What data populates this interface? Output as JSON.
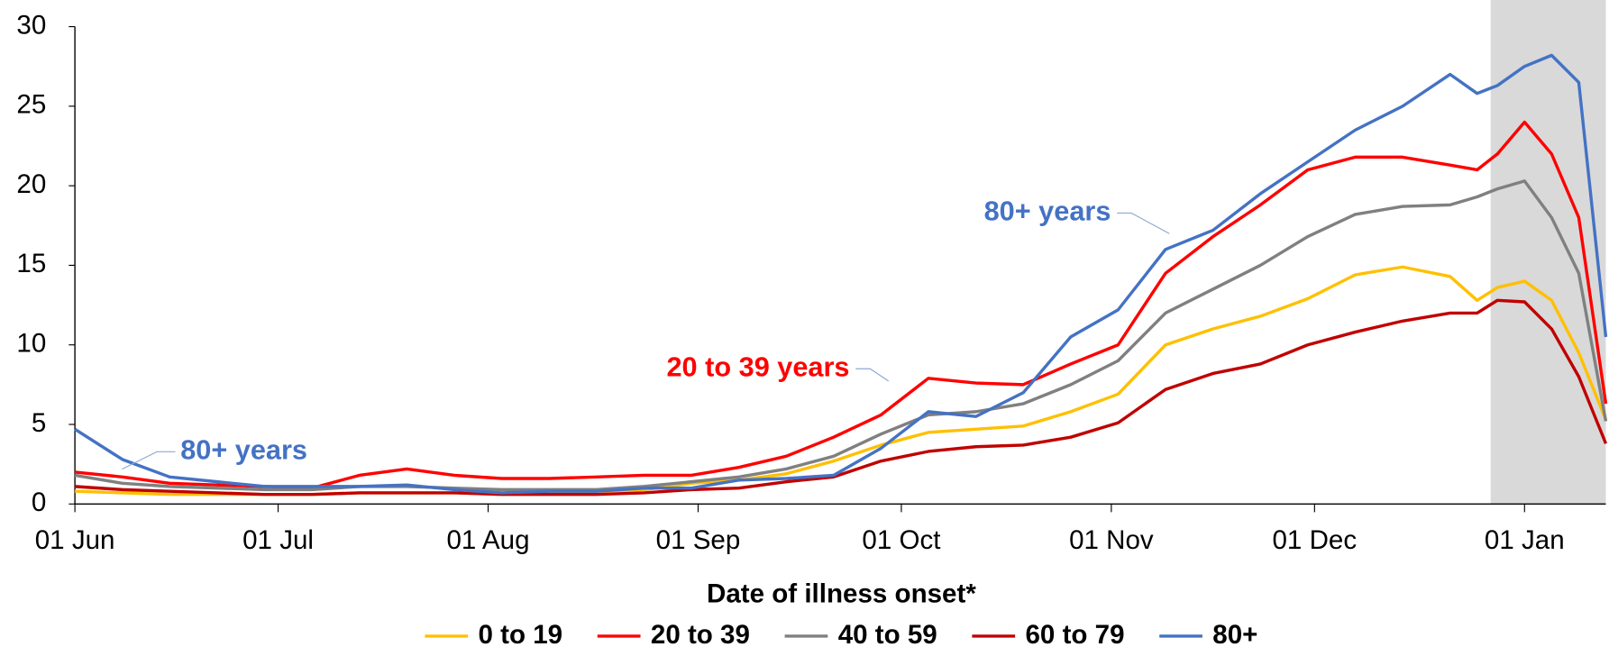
{
  "chart_data": {
    "type": "line",
    "x_label": "Date of illness onset*",
    "x": [
      0,
      7,
      14,
      21,
      28,
      35,
      42,
      49,
      56,
      63,
      70,
      77,
      84,
      91,
      98,
      105,
      112,
      119,
      126,
      133,
      140,
      147,
      154,
      161,
      168,
      175,
      182,
      189,
      196,
      203,
      207,
      210,
      214,
      218,
      222,
      226
    ],
    "xlim": [
      0,
      226
    ],
    "xticks": [
      {
        "value": 0,
        "label": "01 Jun"
      },
      {
        "value": 30,
        "label": "01 Jul"
      },
      {
        "value": 61,
        "label": "01 Aug"
      },
      {
        "value": 92,
        "label": "01 Sep"
      },
      {
        "value": 122,
        "label": "01 Oct"
      },
      {
        "value": 153,
        "label": "01 Nov"
      },
      {
        "value": 183,
        "label": "01 Dec"
      },
      {
        "value": 214,
        "label": "01 Jan"
      }
    ],
    "ylim": [
      0,
      30
    ],
    "yticks": [
      0,
      5,
      10,
      15,
      20,
      25,
      30
    ],
    "shade_xlim": [
      209,
      226
    ],
    "shade_color": "#d9d9d9",
    "legend": "bottom",
    "series": [
      {
        "name": "0 to 19",
        "color": "#ffc000",
        "values": [
          0.8,
          0.7,
          0.6,
          0.6,
          0.6,
          0.6,
          0.7,
          0.7,
          0.7,
          0.6,
          0.7,
          0.8,
          0.9,
          1.3,
          1.5,
          1.9,
          2.7,
          3.7,
          4.5,
          4.7,
          4.9,
          5.8,
          6.9,
          10.0,
          11.0,
          11.8,
          12.9,
          14.4,
          14.9,
          14.3,
          12.8,
          13.6,
          14.0,
          12.8,
          9.5,
          5.3
        ]
      },
      {
        "name": "20 to 39",
        "color": "#ff0000",
        "values": [
          2.0,
          1.7,
          1.3,
          1.2,
          1.1,
          1.0,
          1.8,
          2.2,
          1.8,
          1.6,
          1.6,
          1.7,
          1.8,
          1.8,
          2.3,
          3.0,
          4.2,
          5.6,
          7.9,
          7.6,
          7.5,
          8.8,
          10.0,
          14.5,
          16.8,
          18.8,
          21.0,
          21.8,
          21.8,
          21.3,
          21.0,
          22.0,
          24.0,
          22.0,
          18.0,
          6.3
        ]
      },
      {
        "name": "40 to 59",
        "color": "#808080",
        "values": [
          1.8,
          1.3,
          1.1,
          1.0,
          0.9,
          0.9,
          1.1,
          1.1,
          1.0,
          0.9,
          0.9,
          0.9,
          1.1,
          1.4,
          1.7,
          2.2,
          3.0,
          4.4,
          5.6,
          5.8,
          6.3,
          7.5,
          9.0,
          12.0,
          13.5,
          15.0,
          16.8,
          18.2,
          18.7,
          18.8,
          19.3,
          19.8,
          20.3,
          18.0,
          14.5,
          5.2
        ]
      },
      {
        "name": "60 to 79",
        "color": "#c00000",
        "values": [
          1.1,
          0.9,
          0.8,
          0.7,
          0.6,
          0.6,
          0.7,
          0.7,
          0.7,
          0.6,
          0.6,
          0.6,
          0.7,
          0.9,
          1.0,
          1.4,
          1.7,
          2.7,
          3.3,
          3.6,
          3.7,
          4.2,
          5.1,
          7.2,
          8.2,
          8.8,
          10.0,
          10.8,
          11.5,
          12.0,
          12.0,
          12.8,
          12.7,
          11.0,
          8.0,
          3.8
        ]
      },
      {
        "name": "80+",
        "color": "#4472c4",
        "values": [
          4.7,
          2.8,
          1.7,
          1.4,
          1.1,
          1.1,
          1.1,
          1.2,
          0.9,
          0.7,
          0.8,
          0.8,
          1.0,
          1.0,
          1.5,
          1.6,
          1.8,
          3.5,
          5.8,
          5.5,
          7.0,
          10.5,
          12.2,
          16.0,
          17.2,
          19.5,
          21.5,
          23.5,
          25.0,
          27.0,
          25.8,
          26.3,
          27.5,
          28.2,
          26.5,
          10.5
        ]
      }
    ],
    "annotations": [
      {
        "text": "80+ years",
        "color": "#4472c4"
      },
      {
        "text": "20 to 39 years",
        "color": "#ff0000"
      },
      {
        "text": "80+ years",
        "color": "#4472c4"
      }
    ]
  }
}
